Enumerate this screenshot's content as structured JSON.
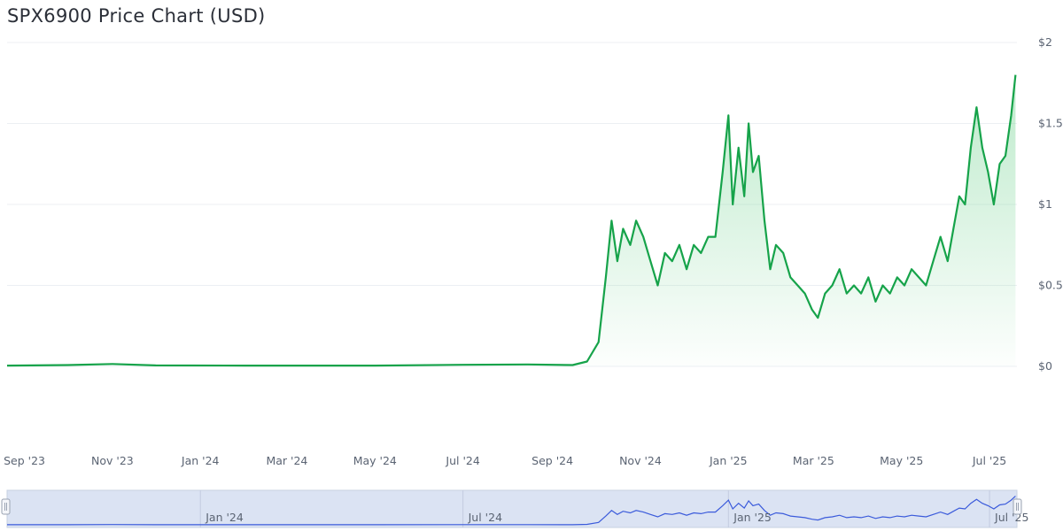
{
  "title": "SPX6900 Price Chart (USD)",
  "colors": {
    "line": "#16a34a",
    "fill_top": "#86d9a0",
    "navigator_line": "#3b5bdb",
    "navigator_fill": "#dbe3f3",
    "grid": "#eceff3"
  },
  "chart_data": {
    "type": "area",
    "title": "SPX6900 Price Chart (USD)",
    "xlabel": "",
    "ylabel": "",
    "x_range": [
      "2023-08-20",
      "2025-07-20"
    ],
    "ylim": [
      0,
      2
    ],
    "y_ticks": [
      {
        "value": 0,
        "label": "$0"
      },
      {
        "value": 0.5,
        "label": "$0.5"
      },
      {
        "value": 1,
        "label": "$1"
      },
      {
        "value": 1.5,
        "label": "$1.5"
      },
      {
        "value": 2,
        "label": "$2"
      }
    ],
    "x_ticks": [
      {
        "date": "2023-09-01",
        "label": "Sep '23"
      },
      {
        "date": "2023-11-01",
        "label": "Nov '23"
      },
      {
        "date": "2024-01-01",
        "label": "Jan '24"
      },
      {
        "date": "2024-03-01",
        "label": "Mar '24"
      },
      {
        "date": "2024-05-01",
        "label": "May '24"
      },
      {
        "date": "2024-07-01",
        "label": "Jul '24"
      },
      {
        "date": "2024-09-01",
        "label": "Sep '24"
      },
      {
        "date": "2024-11-01",
        "label": "Nov '24"
      },
      {
        "date": "2025-01-01",
        "label": "Jan '25"
      },
      {
        "date": "2025-03-01",
        "label": "Mar '25"
      },
      {
        "date": "2025-05-01",
        "label": "May '25"
      },
      {
        "date": "2025-07-01",
        "label": "Jul '25"
      }
    ],
    "grid": true,
    "series": [
      {
        "x": [
          "2023-08-20",
          "2023-10-01",
          "2023-11-01",
          "2023-12-01",
          "2024-02-01",
          "2024-05-01",
          "2024-07-01",
          "2024-08-15",
          "2024-09-15",
          "2024-09-25",
          "2024-10-03",
          "2024-10-08",
          "2024-10-12",
          "2024-10-16",
          "2024-10-20",
          "2024-10-25",
          "2024-10-29",
          "2024-11-03",
          "2024-11-08",
          "2024-11-13",
          "2024-11-18",
          "2024-11-23",
          "2024-11-28",
          "2024-12-03",
          "2024-12-08",
          "2024-12-13",
          "2024-12-18",
          "2024-12-23",
          "2024-12-28",
          "2025-01-01",
          "2025-01-04",
          "2025-01-08",
          "2025-01-12",
          "2025-01-15",
          "2025-01-18",
          "2025-01-22",
          "2025-01-26",
          "2025-01-30",
          "2025-02-03",
          "2025-02-08",
          "2025-02-13",
          "2025-02-18",
          "2025-02-23",
          "2025-02-28",
          "2025-03-04",
          "2025-03-09",
          "2025-03-14",
          "2025-03-19",
          "2025-03-24",
          "2025-03-29",
          "2025-04-03",
          "2025-04-08",
          "2025-04-13",
          "2025-04-18",
          "2025-04-23",
          "2025-04-28",
          "2025-05-03",
          "2025-05-08",
          "2025-05-13",
          "2025-05-18",
          "2025-05-23",
          "2025-05-28",
          "2025-06-02",
          "2025-06-06",
          "2025-06-10",
          "2025-06-14",
          "2025-06-18",
          "2025-06-22",
          "2025-06-26",
          "2025-06-30",
          "2025-07-04",
          "2025-07-08",
          "2025-07-12",
          "2025-07-16",
          "2025-07-19"
        ],
        "y": [
          0.005,
          0.008,
          0.015,
          0.006,
          0.005,
          0.005,
          0.01,
          0.012,
          0.008,
          0.03,
          0.15,
          0.55,
          0.9,
          0.65,
          0.85,
          0.75,
          0.9,
          0.8,
          0.65,
          0.5,
          0.7,
          0.65,
          0.75,
          0.6,
          0.75,
          0.7,
          0.8,
          0.8,
          1.2,
          1.55,
          1.0,
          1.35,
          1.05,
          1.5,
          1.2,
          1.3,
          0.9,
          0.6,
          0.75,
          0.7,
          0.55,
          0.5,
          0.45,
          0.35,
          0.3,
          0.45,
          0.5,
          0.6,
          0.45,
          0.5,
          0.45,
          0.55,
          0.4,
          0.5,
          0.45,
          0.55,
          0.5,
          0.6,
          0.55,
          0.5,
          0.65,
          0.8,
          0.65,
          0.85,
          1.05,
          1.0,
          1.35,
          1.6,
          1.35,
          1.2,
          1.0,
          1.25,
          1.3,
          1.55,
          1.8
        ]
      }
    ],
    "navigator": {
      "tick_labels": [
        "Jan '24",
        "Jul '24",
        "Jan '25",
        "Jul '25"
      ]
    }
  }
}
